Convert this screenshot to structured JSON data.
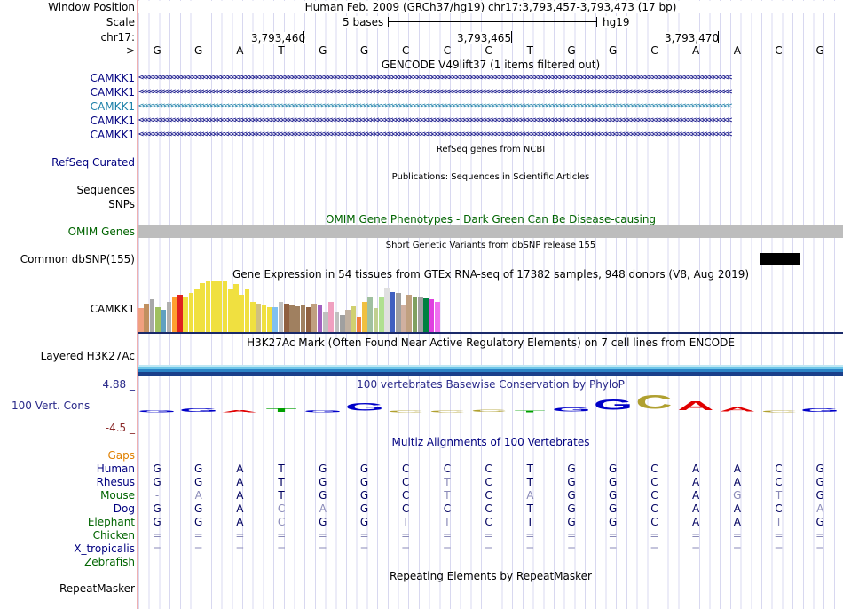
{
  "labels": {
    "window_position": "Window Position",
    "scale": "Scale",
    "chr": "chr17:",
    "arrow": "--->",
    "camkk1": [
      "CAMKK1",
      "CAMKK1",
      "CAMKK1",
      "CAMKK1",
      "CAMKK1"
    ],
    "refseq": "RefSeq Curated",
    "sequences": "Sequences",
    "snps": "SNPs",
    "omim": "OMIM Genes",
    "dbsnp": "Common dbSNP(155)",
    "gtex": "CAMKK1",
    "h3k27ac": "Layered H3K27Ac",
    "cons_top": "4.88 _",
    "cons_label": "100 Vert. Cons",
    "cons_bottom": "-4.5 _",
    "gaps": "Gaps",
    "species": [
      "Human",
      "Rhesus",
      "Mouse",
      "Dog",
      "Elephant",
      "Chicken",
      "X_tropicalis",
      "Zebrafish"
    ],
    "repeatmasker": "RepeatMasker"
  },
  "header": {
    "position": "Human Feb. 2009 (GRCh37/hg19)   chr17:3,793,457-3,793,473 (17 bp)",
    "scale_text": "5 bases",
    "assembly": "hg19",
    "ticks": [
      "3,793,460",
      "3,793,465",
      "3,793,470"
    ]
  },
  "sequence": [
    "G",
    "G",
    "A",
    "T",
    "G",
    "G",
    "C",
    "C",
    "C",
    "T",
    "G",
    "G",
    "C",
    "A",
    "A",
    "C",
    "G"
  ],
  "tracks": {
    "gencode": "GENCODE V49lift37 (1 items filtered out)",
    "refseq": "RefSeq genes from NCBI",
    "publications": "Publications: Sequences in Scientific Articles",
    "omim": "OMIM Gene Phenotypes - Dark Green Can Be Disease-causing",
    "dbsnp": "Short Genetic Variants from dbSNP release 155",
    "gtex": "Gene Expression in 54 tissues from GTEx RNA-seq of 17382 samples, 948 donors (V8, Aug 2019)",
    "h3k27ac": "H3K27Ac Mark (Often Found Near Active Regulatory Elements) on 7 cell lines from ENCODE",
    "phylop": "100 vertebrates Basewise Conservation by PhyloP",
    "multiz": "Multiz Alignments of 100 Vertebrates",
    "repeat": "Repeating Elements by RepeatMasker"
  },
  "gene_arrows": "<<<<<<<<<<<<<<<<<<<<<<<<<<<<<<<<<<<<<<<<<<<<<<<<<<<<<<<<<<<<<<<<<<<<<<<<<<<<<<<<<<<<<<<<<<<<<<<<<<<<<<<<<<<<<<<<<<<<<<<<<<<<<<<<<<<<<<<<<<<<<<<<<<<<<<<<<<<<<<<<<<<<<<",
  "colors": {
    "track_label": "#000080",
    "omim_label": "#006400",
    "gaps": "#e08000",
    "gene_highlight": "#1a7fa8",
    "cons_top": "#2a2a8a",
    "cons_bottom": "#8a2a2a"
  },
  "gtex": {
    "values": [
      0.45,
      0.55,
      0.62,
      0.48,
      0.42,
      0.58,
      0.68,
      0.72,
      0.68,
      0.74,
      0.82,
      0.94,
      0.98,
      0.98,
      0.96,
      0.98,
      0.82,
      0.92,
      0.72,
      0.82,
      0.58,
      0.55,
      0.52,
      0.48,
      0.48,
      0.58,
      0.55,
      0.52,
      0.5,
      0.52,
      0.48,
      0.55,
      0.52,
      0.38,
      0.58,
      0.38,
      0.32,
      0.42,
      0.5,
      0.28,
      0.58,
      0.68,
      0.46,
      0.68,
      0.84,
      0.76,
      0.74,
      0.52,
      0.72,
      0.68,
      0.66,
      0.64,
      0.62,
      0.58
    ],
    "colors": [
      "#f0a080",
      "#c09060",
      "#a8a8a8",
      "#a0c060",
      "#60a0c0",
      "#b0b0b0",
      "#ffa030",
      "#e02020",
      "#f0e040",
      "#f0e040",
      "#f0e040",
      "#f0e040",
      "#f0e040",
      "#f0e040",
      "#f0e040",
      "#f0e040",
      "#f0e040",
      "#f0e040",
      "#f0e040",
      "#f0e040",
      "#f0e040",
      "#d0c080",
      "#f0e040",
      "#f0e040",
      "#80c0f0",
      "#c0c0c0",
      "#906040",
      "#a08060",
      "#a08060",
      "#a08060",
      "#906040",
      "#c0a080",
      "#a060c0",
      "#c0c0c0",
      "#f0a0c0",
      "#c0c0c0",
      "#a0a0a0",
      "#c0b0a0",
      "#d0d070",
      "#f08040",
      "#f0c040",
      "#a0c0a0",
      "#c0d090",
      "#b0e090",
      "#e0e0e0",
      "#4060c0",
      "#a0a0a0",
      "#d0b0a0",
      "#c0a080",
      "#80a060",
      "#a0a0a0",
      "#008040",
      "#e040e0",
      "#f070f0"
    ]
  },
  "cons_logo": [
    {
      "l": "G",
      "c": "#0000c8",
      "h": 0.15
    },
    {
      "l": "G",
      "c": "#0000c8",
      "h": 0.25
    },
    {
      "l": "A",
      "c": "#e00000",
      "h": 0.15
    },
    {
      "l": "T",
      "c": "#00a000",
      "h": 0.25
    },
    {
      "l": "G",
      "c": "#0000c8",
      "h": 0.15
    },
    {
      "l": "G",
      "c": "#0000c8",
      "h": 0.55
    },
    {
      "l": "C",
      "c": "#b0a030",
      "h": 0.1
    },
    {
      "l": "C",
      "c": "#b0a030",
      "h": 0.12
    },
    {
      "l": "C",
      "c": "#b0a030",
      "h": 0.18
    },
    {
      "l": "T",
      "c": "#00a000",
      "h": 0.02
    },
    {
      "l": "G",
      "c": "#0000c8",
      "h": 0.3
    },
    {
      "l": "G",
      "c": "#0000c8",
      "h": 0.75
    },
    {
      "l": "C",
      "c": "#b0a030",
      "h": 1.0
    },
    {
      "l": "A",
      "c": "#e00000",
      "h": 0.65
    },
    {
      "l": "A",
      "c": "#e00000",
      "h": 0.3
    },
    {
      "l": "C",
      "c": "#b0a030",
      "h": 0.02
    },
    {
      "l": "G",
      "c": "#0000c8",
      "h": 0.25
    }
  ],
  "alignment": [
    {
      "name": "Human",
      "seq": [
        "G",
        "G",
        "A",
        "T",
        "G",
        "G",
        "C",
        "C",
        "C",
        "T",
        "G",
        "G",
        "C",
        "A",
        "A",
        "C",
        "G"
      ],
      "dim": []
    },
    {
      "name": "Rhesus",
      "seq": [
        "G",
        "G",
        "A",
        "T",
        "G",
        "G",
        "C",
        "T",
        "C",
        "T",
        "G",
        "G",
        "C",
        "A",
        "A",
        "C",
        "G"
      ],
      "dim": [
        7
      ]
    },
    {
      "name": "Mouse",
      "seq": [
        "-",
        "A",
        "A",
        "T",
        "G",
        "G",
        "C",
        "T",
        "C",
        "A",
        "G",
        "G",
        "C",
        "A",
        "G",
        "T",
        "G"
      ],
      "dim": [
        0,
        1,
        7,
        9,
        14,
        15
      ]
    },
    {
      "name": "Dog",
      "seq": [
        "G",
        "G",
        "A",
        "C",
        "A",
        "G",
        "C",
        "C",
        "C",
        "T",
        "G",
        "G",
        "C",
        "A",
        "A",
        "C",
        "A"
      ],
      "dim": [
        3,
        4,
        16
      ]
    },
    {
      "name": "Elephant",
      "seq": [
        "G",
        "G",
        "A",
        "C",
        "G",
        "G",
        "T",
        "T",
        "C",
        "T",
        "G",
        "G",
        "C",
        "A",
        "A",
        "T",
        "G"
      ],
      "dim": [
        3,
        6,
        7,
        15
      ]
    },
    {
      "name": "Chicken",
      "seq": [
        "=",
        "=",
        "=",
        "=",
        "=",
        "=",
        "=",
        "=",
        "=",
        "=",
        "=",
        "=",
        "=",
        "=",
        "=",
        "=",
        "="
      ],
      "dim": []
    },
    {
      "name": "X_tropicalis",
      "seq": [
        "=",
        "=",
        "=",
        "=",
        "=",
        "=",
        "=",
        "=",
        "=",
        "=",
        "=",
        "=",
        "=",
        "=",
        "=",
        "=",
        "="
      ],
      "dim": []
    },
    {
      "name": "Zebrafish",
      "seq": [
        "",
        "",
        "",
        "",
        "",
        "",
        "",
        "",
        "",
        "",
        "",
        "",
        "",
        "",
        "",
        "",
        ""
      ],
      "dim": []
    }
  ]
}
